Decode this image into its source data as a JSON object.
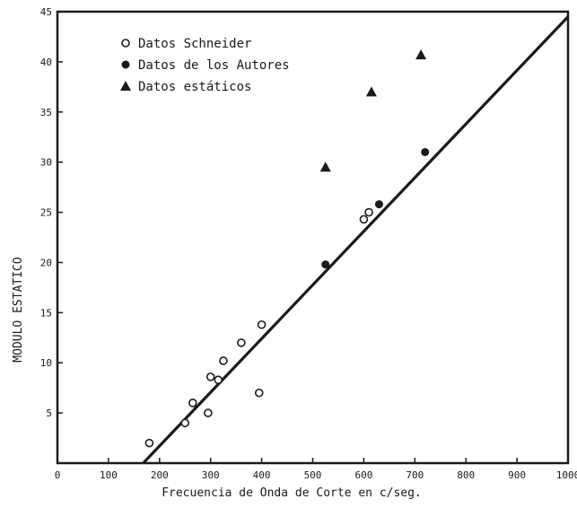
{
  "chart_data": {
    "type": "scatter",
    "title": "",
    "xlabel": "Frecuencia de Onda de Corte en c/seg.",
    "ylabel": "MODULO ESTATICO",
    "xlim": [
      0,
      1000
    ],
    "ylim": [
      0,
      45
    ],
    "x_ticks": [
      "0",
      "100",
      "200",
      "300",
      "400",
      "500",
      "600",
      "700",
      "800",
      "900",
      "1000"
    ],
    "y_ticks": [
      "5",
      "10",
      "15",
      "20",
      "25",
      "30",
      "35",
      "40",
      "45"
    ],
    "grid": false,
    "legend_position": "top-left",
    "series": [
      {
        "name": "Datos Schneider",
        "marker": "open-circle",
        "points": [
          [
            180,
            2
          ],
          [
            250,
            4
          ],
          [
            265,
            6
          ],
          [
            295,
            5
          ],
          [
            300,
            8.6
          ],
          [
            315,
            8.3
          ],
          [
            325,
            10.2
          ],
          [
            360,
            12
          ],
          [
            395,
            7
          ],
          [
            400,
            13.8
          ],
          [
            600,
            24.3
          ],
          [
            610,
            25
          ]
        ]
      },
      {
        "name": "Datos de los Autores",
        "marker": "filled-circle",
        "points": [
          [
            525,
            19.8
          ],
          [
            630,
            25.8
          ],
          [
            720,
            31
          ]
        ]
      },
      {
        "name": "Datos estáticos",
        "marker": "filled-triangle",
        "points": [
          [
            525,
            29.5
          ],
          [
            615,
            37
          ],
          [
            712,
            40.7
          ]
        ]
      }
    ],
    "fit_line": {
      "from": [
        168,
        0
      ],
      "to": [
        1000,
        44.5
      ]
    }
  }
}
